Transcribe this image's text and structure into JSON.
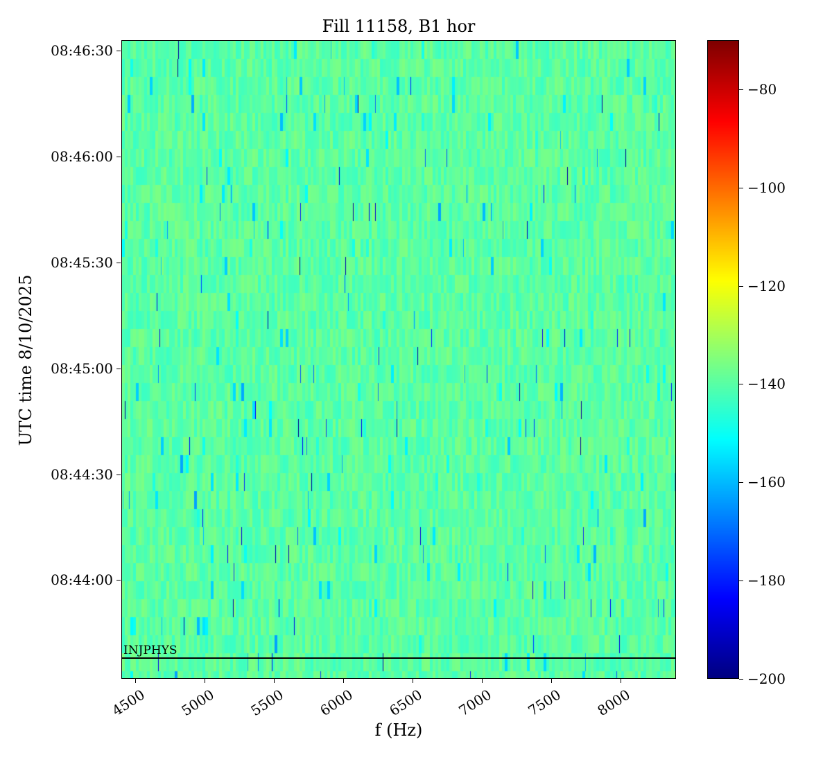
{
  "title": "Fill 11158, B1 hor",
  "chart_data": {
    "type": "heatmap",
    "title": "Fill 11158, B1 hor",
    "xlabel": "f (Hz)",
    "ylabel": "UTC time 8/10/2025",
    "x_ticks": [
      4500,
      5000,
      5500,
      6000,
      6500,
      7000,
      7500,
      8000
    ],
    "x_range_hz": [
      4400,
      8400
    ],
    "y_ticks": [
      "08:46:30",
      "08:46:00",
      "08:45:30",
      "08:45:00",
      "08:44:30",
      "08:44:00"
    ],
    "y_range_utc": [
      "08:43:32",
      "08:46:33"
    ],
    "colormap": "jet",
    "color_scale": {
      "vmin": -200,
      "vmax": -70,
      "tick_values": [
        -80,
        -100,
        -120,
        -140,
        -160,
        -180,
        -200
      ],
      "tick_labels": [
        "−80",
        "−100",
        "−120",
        "−140",
        "−160",
        "−180",
        "−200"
      ]
    },
    "values_summary": {
      "typical_level_db": -140,
      "spread_db": 4,
      "sparse_dips_to_db": -190,
      "texture": "vertical stripes per time band, occasional thin dark-blue lines"
    },
    "annotation": {
      "label": "INJPHYS",
      "time_utc": "08:43:38"
    },
    "noise_seed": 11158,
    "grid": {
      "cols": 200,
      "rows": 36
    },
    "legend_position": "right-colorbar",
    "grid_lines": false
  }
}
